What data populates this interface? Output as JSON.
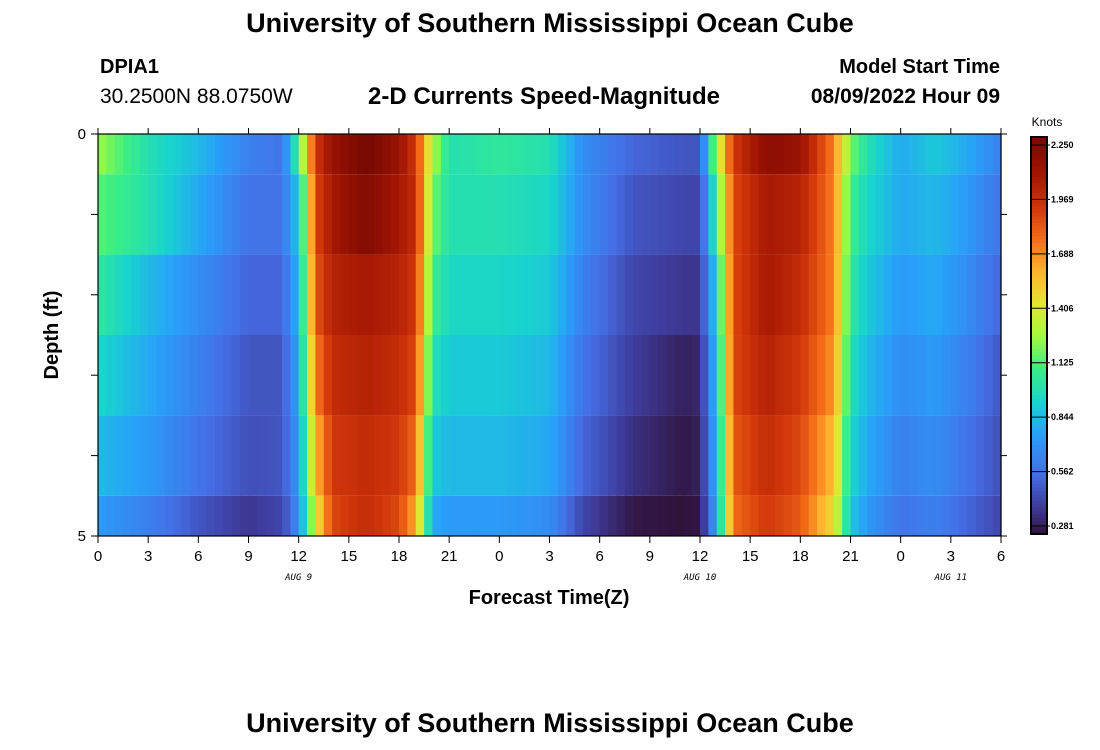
{
  "header": {
    "title": "University of Southern Mississippi Ocean Cube",
    "station_id": "DPIA1",
    "coords": "30.2500N  88.0750W",
    "subtitle": "2-D Currents Speed-Magnitude",
    "model_start_label": "Model Start Time",
    "model_start_value": "08/09/2022 Hour 09"
  },
  "footer": {
    "title": "University of Southern Mississippi Ocean Cube"
  },
  "chart_data": {
    "type": "heatmap",
    "title": "2-D Currents Speed-Magnitude",
    "xlabel": "Forecast Time(Z)",
    "ylabel": "Depth (ft)",
    "x_hours_since_aug9_00z": [
      0,
      54
    ],
    "x_tick_labels": [
      "0",
      "3",
      "6",
      "9",
      "12",
      "15",
      "18",
      "21",
      "0",
      "3",
      "6",
      "9",
      "12",
      "15",
      "18",
      "21",
      "0",
      "3",
      "6"
    ],
    "date_labels": [
      {
        "text": "AUG 9",
        "hour": 12
      },
      {
        "text": "AUG 10",
        "hour": 36
      },
      {
        "text": "AUG 11",
        "hour": 51
      }
    ],
    "y_tick_labels": [
      "0",
      "5"
    ],
    "ylim": [
      0,
      5
    ],
    "depth_levels_ft": [
      0,
      0.5,
      1.5,
      2.5,
      3.5,
      4.5,
      5
    ],
    "colorbar": {
      "title": "Knots",
      "min": 0.281,
      "max": 2.25,
      "ticks": [
        "2.250",
        "1.969",
        "1.688",
        "1.406",
        "1.125",
        "0.844",
        "0.562",
        "0.281"
      ]
    },
    "speed_keypoints": {
      "hours": [
        0,
        3,
        6,
        9,
        11,
        12,
        13,
        14,
        16,
        18,
        19,
        20,
        21,
        24,
        27,
        29,
        32,
        35,
        36,
        37,
        38,
        40,
        42,
        44,
        45,
        46,
        48,
        50,
        52,
        54
      ],
      "layers": [
        [
          1.25,
          1.0,
          0.85,
          0.65,
          0.6,
          1.1,
          1.9,
          2.1,
          2.25,
          2.1,
          1.9,
          1.3,
          1.0,
          1.05,
          1.0,
          0.7,
          0.55,
          0.5,
          0.5,
          1.3,
          1.9,
          2.15,
          2.1,
          1.7,
          1.2,
          1.0,
          0.8,
          0.9,
          0.8,
          0.65
        ],
        [
          1.15,
          1.0,
          0.8,
          0.6,
          0.6,
          0.9,
          1.85,
          2.05,
          2.2,
          2.05,
          1.95,
          1.2,
          1.0,
          1.0,
          0.95,
          0.7,
          0.5,
          0.45,
          0.45,
          1.1,
          1.85,
          2.05,
          2.0,
          1.7,
          1.1,
          0.95,
          0.8,
          0.85,
          0.75,
          0.6
        ],
        [
          1.05,
          0.85,
          0.7,
          0.55,
          0.55,
          0.85,
          1.8,
          2.0,
          2.05,
          2.0,
          1.9,
          1.1,
          0.95,
          0.95,
          0.9,
          0.65,
          0.45,
          0.4,
          0.4,
          0.95,
          1.85,
          2.05,
          1.95,
          1.7,
          1.05,
          0.9,
          0.75,
          0.8,
          0.7,
          0.55
        ],
        [
          0.95,
          0.8,
          0.65,
          0.5,
          0.5,
          0.8,
          1.7,
          1.95,
          2.0,
          1.95,
          1.85,
          1.0,
          0.9,
          0.9,
          0.85,
          0.6,
          0.42,
          0.33,
          0.35,
          0.9,
          1.85,
          2.0,
          1.9,
          1.65,
          1.0,
          0.85,
          0.7,
          0.75,
          0.65,
          0.5
        ],
        [
          0.85,
          0.75,
          0.6,
          0.48,
          0.5,
          0.75,
          1.55,
          1.9,
          1.95,
          1.9,
          1.75,
          0.9,
          0.85,
          0.85,
          0.8,
          0.55,
          0.38,
          0.3,
          0.33,
          0.85,
          1.8,
          1.95,
          1.85,
          1.55,
          0.95,
          0.8,
          0.65,
          0.7,
          0.6,
          0.48
        ],
        [
          0.75,
          0.65,
          0.5,
          0.4,
          0.45,
          0.7,
          1.4,
          1.85,
          1.95,
          1.85,
          1.6,
          0.8,
          0.75,
          0.75,
          0.7,
          0.45,
          0.3,
          0.28,
          0.3,
          0.8,
          1.75,
          1.9,
          1.8,
          1.45,
          0.9,
          0.75,
          0.6,
          0.65,
          0.55,
          0.45
        ]
      ]
    }
  }
}
